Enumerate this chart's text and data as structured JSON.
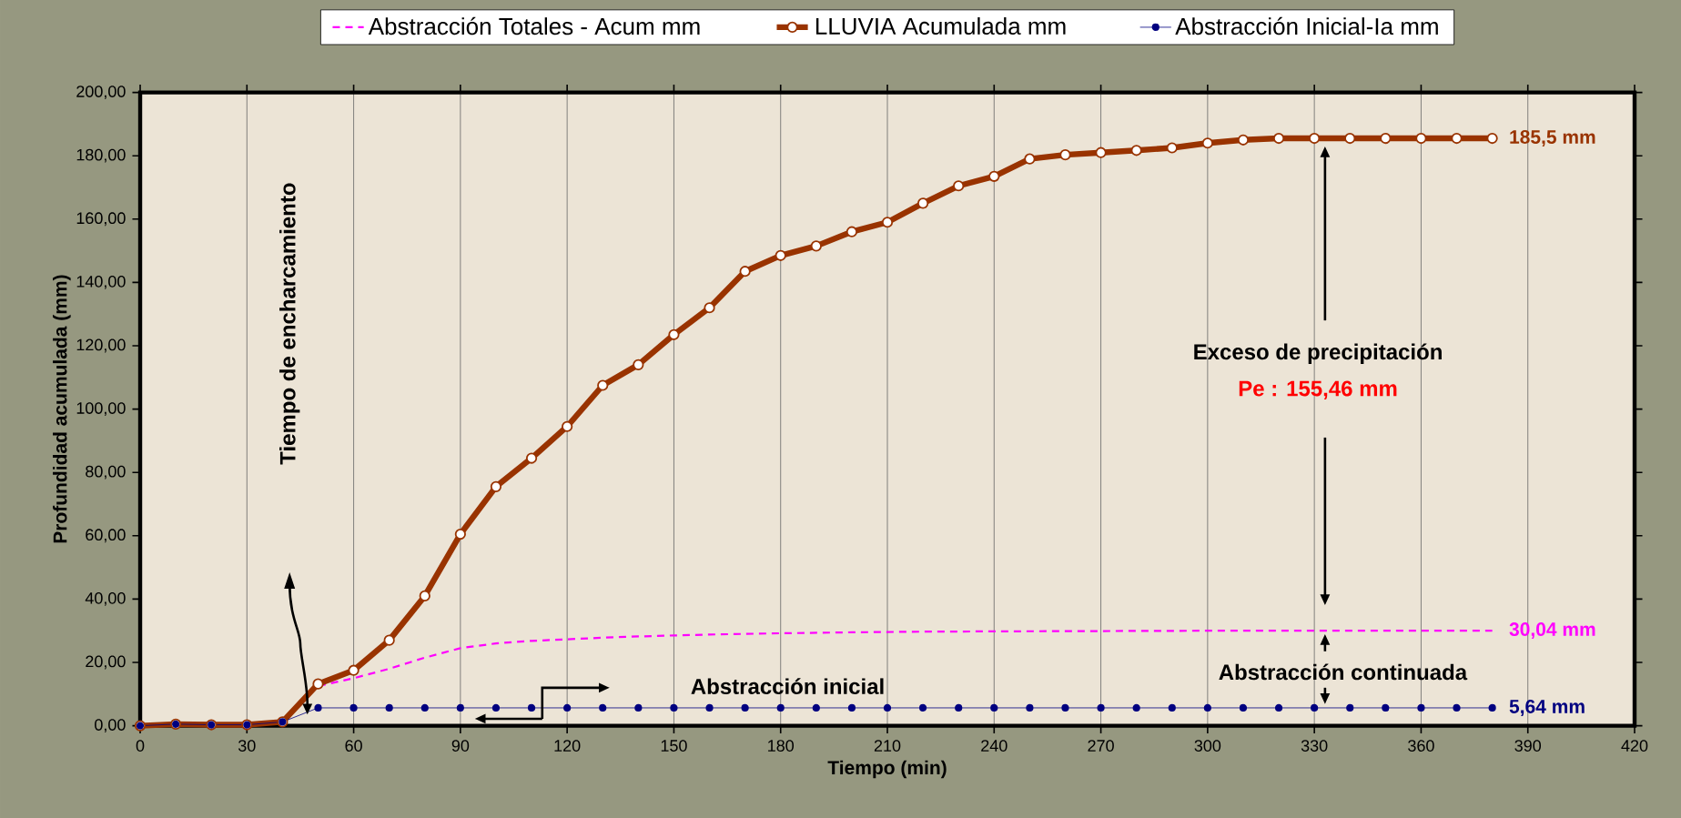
{
  "chart_data": {
    "type": "line",
    "xlabel": "Tiempo (min)",
    "ylabel": "Profundidad acumulada (mm)",
    "xlim": [
      0,
      420
    ],
    "xticks": [
      0,
      30,
      60,
      90,
      120,
      150,
      180,
      210,
      240,
      270,
      300,
      330,
      360,
      390,
      420
    ],
    "ylim": [
      0,
      200
    ],
    "yticks": [
      {
        "value": 0,
        "label": "0,00"
      },
      {
        "value": 20,
        "label": "20,00"
      },
      {
        "value": 40,
        "label": "40,00"
      },
      {
        "value": 60,
        "label": "60,00"
      },
      {
        "value": 80,
        "label": "80,00"
      },
      {
        "value": 100,
        "label": "100,00"
      },
      {
        "value": 120,
        "label": "120,00"
      },
      {
        "value": 140,
        "label": "140,00"
      },
      {
        "value": 160,
        "label": "160,00"
      },
      {
        "value": 180,
        "label": "180,00"
      },
      {
        "value": 200,
        "label": "200,00"
      }
    ],
    "grid": "x",
    "legend": "top",
    "series": [
      {
        "name": "Abstracción Totales - Acum mm",
        "color": "#ff00ff",
        "line_style": "dashed",
        "marker": "none",
        "x": [
          40,
          50,
          60,
          70,
          80,
          90,
          100,
          110,
          120,
          130,
          140,
          150,
          160,
          170,
          180,
          200,
          220,
          240,
          270,
          300,
          340,
          380
        ],
        "values": [
          1.2,
          12.5,
          15,
          18,
          21.5,
          24.5,
          26,
          26.8,
          27.3,
          27.8,
          28.2,
          28.5,
          28.8,
          29,
          29.2,
          29.5,
          29.7,
          29.8,
          29.9,
          30,
          30,
          30.04
        ],
        "value_labels": [
          null,
          null,
          null,
          null,
          null,
          null,
          null,
          null,
          null,
          null,
          null,
          null,
          null,
          null,
          null,
          null,
          null,
          null,
          null,
          null,
          null,
          "30,04 mm"
        ]
      },
      {
        "name": "LLUVIA Acumulada mm",
        "color": "#993300",
        "line_style": "solid",
        "marker": "circle",
        "x": [
          0,
          10,
          20,
          30,
          40,
          50,
          60,
          70,
          80,
          90,
          100,
          110,
          120,
          130,
          140,
          150,
          160,
          170,
          180,
          190,
          200,
          210,
          220,
          230,
          240,
          250,
          260,
          270,
          280,
          290,
          300,
          310,
          320,
          330,
          340,
          350,
          360,
          370,
          380
        ],
        "values": [
          0,
          0.5,
          0.3,
          0.3,
          1.2,
          13.2,
          17.5,
          27,
          41,
          60.5,
          75.5,
          84.5,
          94.5,
          107.5,
          114,
          123.5,
          132,
          143.5,
          148.5,
          151.5,
          156,
          159,
          165,
          170.5,
          173.5,
          179,
          180.3,
          181,
          181.7,
          182.5,
          184,
          185,
          185.5,
          185.5,
          185.5,
          185.5,
          185.5,
          185.5,
          185.5
        ],
        "value_labels": [
          null,
          null,
          null,
          null,
          null,
          null,
          null,
          null,
          null,
          null,
          null,
          null,
          null,
          null,
          null,
          null,
          null,
          null,
          null,
          null,
          null,
          null,
          null,
          null,
          null,
          null,
          null,
          null,
          null,
          null,
          null,
          null,
          null,
          null,
          null,
          null,
          null,
          null,
          "185,5 mm"
        ]
      },
      {
        "name": "Abstracción Inicial-Ia mm",
        "color": "#000080",
        "line_style": "solid",
        "marker": "circle",
        "x": [
          0,
          10,
          20,
          30,
          40,
          50,
          60,
          70,
          80,
          90,
          100,
          110,
          120,
          130,
          140,
          150,
          160,
          170,
          180,
          190,
          200,
          210,
          220,
          230,
          240,
          250,
          260,
          270,
          280,
          290,
          300,
          310,
          320,
          330,
          340,
          350,
          360,
          370,
          380
        ],
        "values": [
          0,
          0.5,
          0.3,
          0.3,
          1.2,
          5.64,
          5.64,
          5.64,
          5.64,
          5.64,
          5.64,
          5.64,
          5.64,
          5.64,
          5.64,
          5.64,
          5.64,
          5.64,
          5.64,
          5.64,
          5.64,
          5.64,
          5.64,
          5.64,
          5.64,
          5.64,
          5.64,
          5.64,
          5.64,
          5.64,
          5.64,
          5.64,
          5.64,
          5.64,
          5.64,
          5.64,
          5.64,
          5.64,
          5.64
        ],
        "value_labels": [
          null,
          null,
          null,
          null,
          null,
          null,
          null,
          null,
          null,
          null,
          null,
          null,
          null,
          null,
          null,
          null,
          null,
          null,
          null,
          null,
          null,
          null,
          null,
          null,
          null,
          null,
          null,
          null,
          null,
          null,
          null,
          null,
          null,
          null,
          null,
          null,
          null,
          null,
          "5,64 mm"
        ]
      }
    ],
    "annotations": [
      "Tiempo de encharcamiento",
      "Abstracción inicial",
      "Exceso de precipitación",
      "Pe : 155,46 mm",
      "Abstracción continuada"
    ]
  }
}
